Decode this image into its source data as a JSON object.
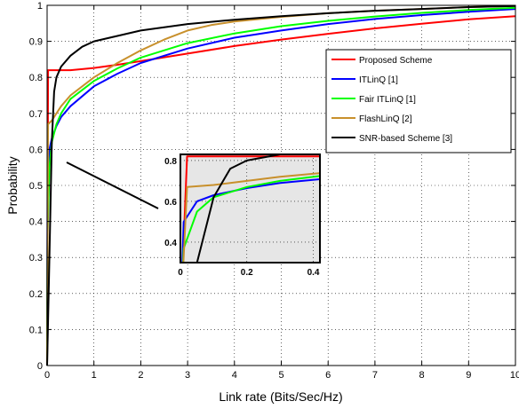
{
  "chart_data": {
    "type": "line",
    "xlabel": "Link rate (Bits/Sec/Hz)",
    "ylabel": "Probability",
    "xlim": [
      0,
      10
    ],
    "ylim": [
      0,
      1
    ],
    "xticks": [
      "0",
      "1",
      "2",
      "3",
      "4",
      "5",
      "6",
      "7",
      "8",
      "9",
      "10"
    ],
    "yticks": [
      "0",
      "0.1",
      "0.2",
      "0.3",
      "0.4",
      "0.5",
      "0.6",
      "0.7",
      "0.8",
      "0.9",
      "1"
    ],
    "grid": true,
    "legend_position": "top-right",
    "series": [
      {
        "name": "Proposed Scheme",
        "color": "#ff0000",
        "x": [
          0,
          0.02,
          0.5,
          1,
          1.5,
          2,
          3,
          4,
          5,
          6,
          7,
          8,
          9,
          10
        ],
        "y": [
          0,
          0.82,
          0.82,
          0.826,
          0.835,
          0.845,
          0.866,
          0.887,
          0.905,
          0.921,
          0.936,
          0.949,
          0.961,
          0.97
        ]
      },
      {
        "name": "ITLinQ [1]",
        "color": "#0000ff",
        "x": [
          0,
          0.01,
          0.05,
          0.1,
          0.2,
          0.3,
          0.5,
          1,
          1.5,
          2,
          3,
          4,
          5,
          6,
          7,
          8,
          9,
          10
        ],
        "y": [
          0,
          0.5,
          0.6,
          0.63,
          0.665,
          0.69,
          0.72,
          0.775,
          0.81,
          0.84,
          0.88,
          0.91,
          0.93,
          0.948,
          0.962,
          0.973,
          0.982,
          0.99
        ]
      },
      {
        "name": "Fair ITLinQ [1]",
        "color": "#00ff00",
        "x": [
          0,
          0.01,
          0.05,
          0.1,
          0.2,
          0.3,
          0.5,
          1,
          1.5,
          2,
          3,
          4,
          5,
          6,
          7,
          8,
          9,
          10
        ],
        "y": [
          0,
          0.37,
          0.55,
          0.62,
          0.67,
          0.7,
          0.74,
          0.79,
          0.825,
          0.855,
          0.895,
          0.922,
          0.942,
          0.957,
          0.969,
          0.979,
          0.987,
          0.993
        ]
      },
      {
        "name": "FlashLinQ [2]",
        "color": "#c8902c",
        "x": [
          0,
          0.02,
          0.1,
          0.2,
          0.3,
          0.5,
          1,
          1.5,
          2,
          2.5,
          3,
          3.5,
          4,
          5,
          6,
          7,
          8,
          9,
          10
        ],
        "y": [
          0,
          0.67,
          0.68,
          0.7,
          0.72,
          0.75,
          0.8,
          0.84,
          0.875,
          0.905,
          0.93,
          0.945,
          0.955,
          0.968,
          0.978,
          0.985,
          0.99,
          0.995,
          0.998
        ]
      },
      {
        "name": "SNR-based Scheme [3]",
        "color": "#000000",
        "x": [
          0,
          0.05,
          0.1,
          0.15,
          0.2,
          0.3,
          0.5,
          0.75,
          1,
          1.5,
          2,
          3,
          4,
          5,
          6,
          7,
          8,
          9,
          10
        ],
        "y": [
          0,
          0.3,
          0.62,
          0.76,
          0.8,
          0.83,
          0.86,
          0.885,
          0.9,
          0.915,
          0.93,
          0.948,
          0.96,
          0.97,
          0.978,
          0.985,
          0.99,
          0.995,
          0.998
        ]
      }
    ],
    "inset": {
      "xlim": [
        0,
        0.42
      ],
      "ylim": [
        0.3,
        0.83
      ],
      "xticks": [
        "0",
        "0.2",
        "0.4"
      ],
      "yticks": [
        "0.4",
        "0.6",
        "0.8"
      ]
    }
  }
}
